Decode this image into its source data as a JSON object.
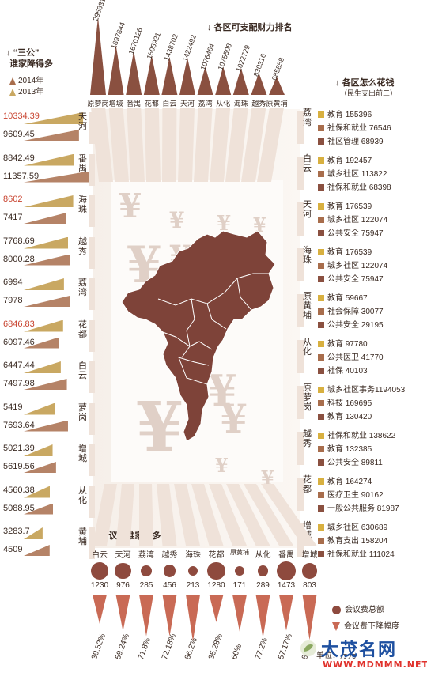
{
  "income": {
    "title": "各区可支配财力排名",
    "max": 3000000,
    "items": [
      {
        "name": "原萝岗",
        "value": "2953314",
        "v": 2953314
      },
      {
        "name": "增城",
        "value": "1897844",
        "v": 1897844
      },
      {
        "name": "番禺",
        "value": "1670126",
        "v": 1670126
      },
      {
        "name": "花都",
        "value": "1505921",
        "v": 1505921
      },
      {
        "name": "白云",
        "value": "1438702",
        "v": 1438702
      },
      {
        "name": "天河",
        "value": "1422492",
        "v": 1422492
      },
      {
        "name": "荔湾",
        "value": "1076464",
        "v": 1076464
      },
      {
        "name": "从化",
        "value": "1075508",
        "v": 1075508
      },
      {
        "name": "海珠",
        "value": "1022729",
        "v": 1022729
      },
      {
        "name": "越秀",
        "value": "830316",
        "v": 830316
      },
      {
        "name": "原黄埔",
        "value": "685858",
        "v": 685858
      }
    ]
  },
  "three": {
    "title1": "“三公”",
    "title2": "谁家降得多",
    "legend2014": "2014年",
    "legend2013": "2013年",
    "max": 11000,
    "colors": {
      "y2014": "#a86d4c",
      "y2013": "#c9a862",
      "highlight": "#c8432f"
    },
    "items": [
      {
        "district": "天河",
        "v2014": 10334.39,
        "l2014": "10334.39",
        "red2014": true,
        "v2013": 9609.45,
        "l2013": "9609.45",
        "red2013": false
      },
      {
        "district": "番禺",
        "v2014": 8842.49,
        "l2014": "8842.49",
        "red2014": false,
        "v2013": 11357.59,
        "l2013": "11357.59",
        "red2013": false
      },
      {
        "district": "海珠",
        "v2014": 8602,
        "l2014": "8602",
        "red2014": true,
        "v2013": 7417,
        "l2013": "7417",
        "red2013": false
      },
      {
        "district": "越秀",
        "v2014": 7768.69,
        "l2014": "7768.69",
        "red2014": false,
        "v2013": 8000.28,
        "l2013": "8000.28",
        "red2013": false
      },
      {
        "district": "荔湾",
        "v2014": 6994,
        "l2014": "6994",
        "red2014": false,
        "v2013": 7978,
        "l2013": "7978",
        "red2013": false
      },
      {
        "district": "花都",
        "v2014": 6846.83,
        "l2014": "6846.83",
        "red2014": true,
        "v2013": 6097.46,
        "l2013": "6097.46",
        "red2013": false
      },
      {
        "district": "白云",
        "v2014": 6447.44,
        "l2014": "6447.44",
        "red2014": false,
        "v2013": 7497.98,
        "l2013": "7497.98",
        "red2013": false
      },
      {
        "district": "萝岗",
        "v2014": 5419,
        "l2014": "5419",
        "red2014": false,
        "v2013": 7693.64,
        "l2013": "7693.64",
        "red2013": false
      },
      {
        "district": "增城",
        "v2014": 5021.39,
        "l2014": "5021.39",
        "red2014": false,
        "v2013": 5619.56,
        "l2013": "5619.56",
        "red2013": false
      },
      {
        "district": "从化",
        "v2014": 4560.38,
        "l2014": "4560.38",
        "red2014": false,
        "v2013": 5088.95,
        "l2013": "5088.95",
        "red2013": false
      },
      {
        "district": "黄埔",
        "v2014": 3283.7,
        "l2014": "3283.7",
        "red2014": false,
        "v2013": 4509,
        "l2013": "4509",
        "red2013": false
      }
    ]
  },
  "spend": {
    "title": "各区怎么花钱",
    "subtitle": "（民生支出前三）",
    "colors": [
      "#d8b040",
      "#a86d4c",
      "#8a5040"
    ],
    "groups": [
      {
        "district": "荔湾",
        "items": [
          {
            "label": "教育 155396"
          },
          {
            "label": "社保和就业 76546"
          },
          {
            "label": "社区管理 68939"
          }
        ]
      },
      {
        "district": "白云",
        "items": [
          {
            "label": "教育 192457"
          },
          {
            "label": "城乡社区 113822"
          },
          {
            "label": "社保和就业 68398"
          }
        ]
      },
      {
        "district": "天河",
        "items": [
          {
            "label": "教育 176539"
          },
          {
            "label": "城乡社区 122074"
          },
          {
            "label": "公共安全 75947"
          }
        ]
      },
      {
        "district": "海珠",
        "items": [
          {
            "label": "教育 176539"
          },
          {
            "label": "城乡社区 122074"
          },
          {
            "label": "公共安全 75947"
          }
        ]
      },
      {
        "district": "原黄埔",
        "items": [
          {
            "label": "教育 59667"
          },
          {
            "label": "社会保障 30077"
          },
          {
            "label": "公共安全 29195"
          }
        ]
      },
      {
        "district": "从化",
        "items": [
          {
            "label": "教育 97780"
          },
          {
            "label": "公共医卫 41770"
          },
          {
            "label": "社保 40103"
          }
        ]
      },
      {
        "district": "原萝岗",
        "items": [
          {
            "label": "城乡社区事务1194053"
          },
          {
            "label": "科技 169695"
          },
          {
            "label": "教育 130420"
          }
        ]
      },
      {
        "district": "越秀",
        "items": [
          {
            "label": "社保和就业 138622"
          },
          {
            "label": "教育 132385"
          },
          {
            "label": "公共安全 89811"
          }
        ]
      },
      {
        "district": "花都",
        "items": [
          {
            "label": "教育 164274"
          },
          {
            "label": "医疗卫生 90162"
          },
          {
            "label": "一般公共服务 81987"
          }
        ]
      },
      {
        "district": "增城",
        "items": [
          {
            "label": "城乡社区 630689"
          },
          {
            "label": "教育支出 158204"
          },
          {
            "label": "社保和就业 111024"
          }
        ]
      }
    ]
  },
  "meeting": {
    "title": "会议费谁家最多",
    "legend_total": "会议费总额",
    "legend_drop": "会议费下降幅度",
    "colors": {
      "dot": "#8e4a3e",
      "drop": "#c96a55"
    },
    "max": 1500,
    "items": [
      {
        "name": "白云",
        "value": "1230",
        "v": 1230,
        "pct": "39.52%",
        "p": 39.52
      },
      {
        "name": "天河",
        "value": "976",
        "v": 976,
        "pct": "59.24%",
        "p": 59.24
      },
      {
        "name": "荔湾",
        "value": "285",
        "v": 285,
        "pct": "71.8%",
        "p": 71.8
      },
      {
        "name": "越秀",
        "value": "456",
        "v": 456,
        "pct": "72.18%",
        "p": 72.18
      },
      {
        "name": "海珠",
        "value": "213",
        "v": 213,
        "pct": "86.2%",
        "p": 86.2
      },
      {
        "name": "花都",
        "value": "1280",
        "v": 1280,
        "pct": "35.28%",
        "p": 35.28
      },
      {
        "name": "原黄埔",
        "value": "171",
        "v": 171,
        "pct": "60%",
        "p": 60
      },
      {
        "name": "从化",
        "value": "289",
        "v": 289,
        "pct": "77.2%",
        "p": 77.2
      },
      {
        "name": "番禺",
        "value": "1473",
        "v": 1473,
        "pct": "57.17%",
        "p": 57.17
      },
      {
        "name": "增城",
        "value": "803",
        "v": 803,
        "pct": "82%",
        "p": 82
      }
    ]
  },
  "units": {
    "wan_yuan": "单位：万元"
  },
  "watermark": {
    "brand": "大茂名网",
    "url": "WWW.MDMMM.NET"
  }
}
